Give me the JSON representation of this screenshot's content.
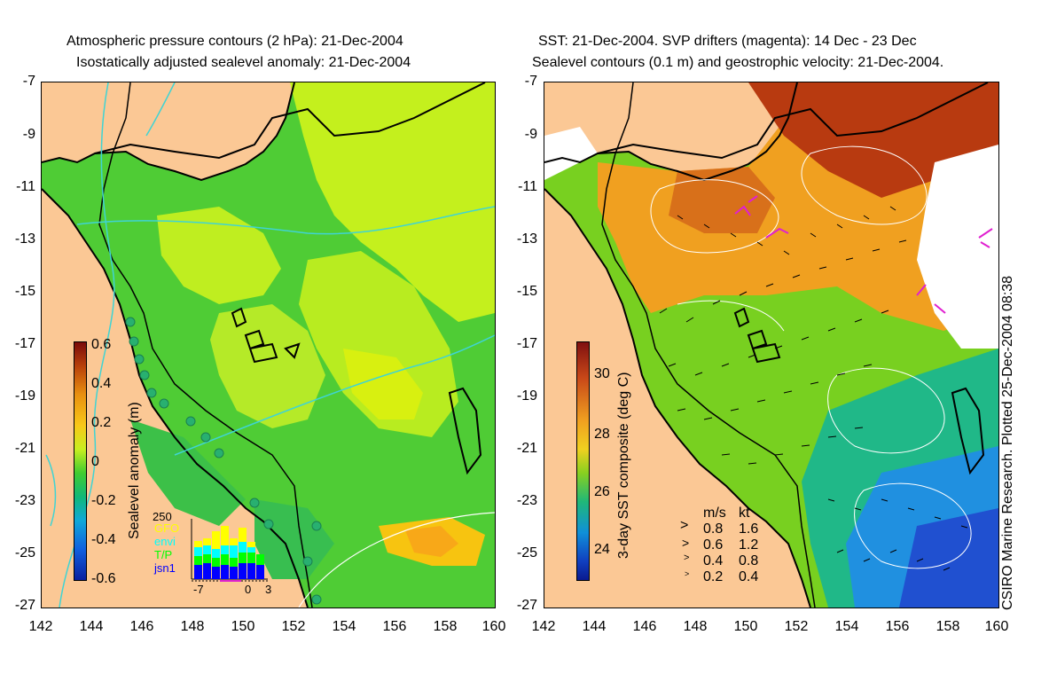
{
  "left_panel": {
    "title_line1": "Atmospheric pressure contours (2 hPa): 21-Dec-2004",
    "title_line2": "Isostatically adjusted sealevel anomaly: 21-Dec-2004",
    "colorbar": {
      "label": "Sealevel anomaly (m)",
      "ticks": [
        "0.6",
        "0.4",
        "0.2",
        "0",
        "-0.2",
        "-0.4",
        "-0.6"
      ]
    },
    "inset": {
      "ymax_label": "250",
      "legend": [
        {
          "label": "GFO",
          "color": "#ffff00"
        },
        {
          "label": "envi",
          "color": "#00ffff"
        },
        {
          "label": "T/P",
          "color": "#00ff00"
        },
        {
          "label": "jsn1",
          "color": "#0000ff"
        }
      ],
      "xticks": [
        "-7",
        "0",
        "3"
      ]
    }
  },
  "right_panel": {
    "title_line1": "SST: 21-Dec-2004. SVP drifters (magenta): 14 Dec - 23 Dec",
    "title_line2": "Sealevel contours (0.1 m) and geostrophic velocity: 21-Dec-2004.",
    "colorbar": {
      "label": "3-day SST composite (deg C)",
      "ticks": [
        "30",
        "28",
        "26",
        "24"
      ]
    },
    "velocity_key": {
      "header_ms": "m/s",
      "header_kt": "kt",
      "rows": [
        {
          "ms": "0.8",
          "kt": "1.6"
        },
        {
          "ms": "0.6",
          "kt": "1.2"
        },
        {
          "ms": "0.4",
          "kt": "0.8"
        },
        {
          "ms": "0.2",
          "kt": "0.4"
        }
      ]
    }
  },
  "axes": {
    "y_ticks": [
      "-7",
      "-9",
      "-11",
      "-13",
      "-15",
      "-17",
      "-19",
      "-21",
      "-23",
      "-25",
      "-27"
    ],
    "x_ticks": [
      "142",
      "144",
      "146",
      "148",
      "150",
      "152",
      "154",
      "156",
      "158",
      "160"
    ]
  },
  "credit": "CSIRO Marine Research. Plotted 25-Dec-2004 08:38",
  "colors": {
    "land": "#fbc895",
    "coast": "#000000",
    "contour_pressure": "#3fd4d4",
    "drifter": "#e020d0"
  }
}
